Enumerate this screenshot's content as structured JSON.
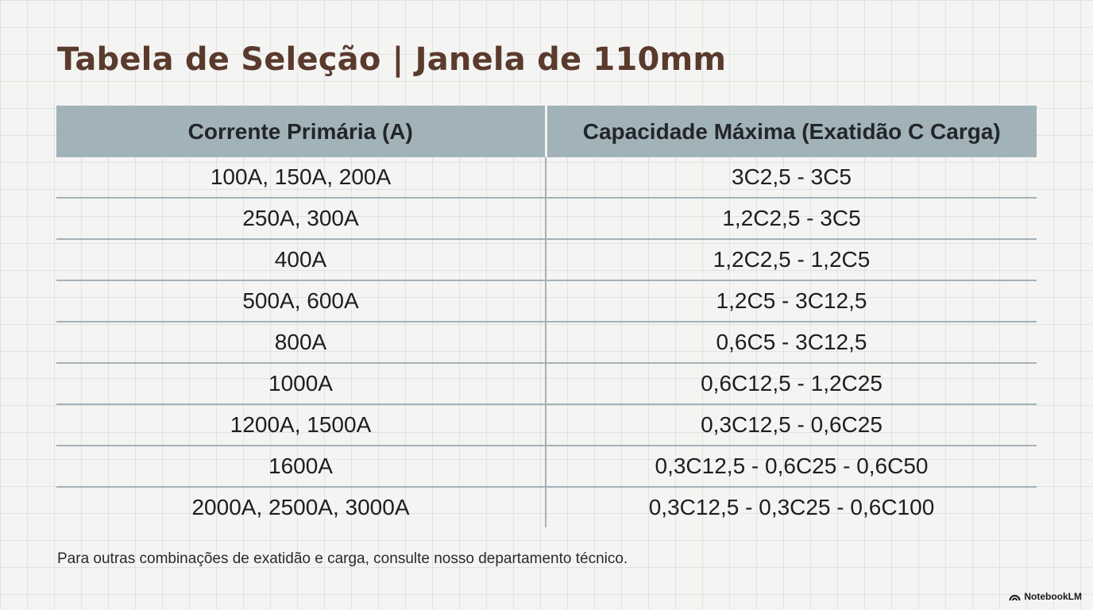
{
  "title": "Tabela de Seleção | Janela de 110mm",
  "table": {
    "headers": [
      "Corrente Primária (A)",
      "Capacidade Máxima (Exatidão C Carga)"
    ],
    "rows": [
      [
        "100A, 150A, 200A",
        "3C2,5 - 3C5"
      ],
      [
        "250A, 300A",
        "1,2C2,5 - 3C5"
      ],
      [
        "400A",
        "1,2C2,5 - 1,2C5"
      ],
      [
        "500A, 600A",
        "1,2C5 - 3C12,5"
      ],
      [
        "800A",
        "0,6C5 - 3C12,5"
      ],
      [
        "1000A",
        "0,6C12,5 - 1,2C25"
      ],
      [
        "1200A, 1500A",
        "0,3C12,5 - 0,6C25"
      ],
      [
        "1600A",
        "0,3C12,5 - 0,6C25 - 0,6C50"
      ],
      [
        "2000A, 2500A, 3000A",
        "0,3C12,5 - 0,3C25 - 0,6C100"
      ]
    ]
  },
  "footnote": "Para outras combinações de exatidão e carga, consulte nosso departamento técnico.",
  "brand": {
    "label": "NotebookLM",
    "icon": "notebooklm-logo-icon"
  },
  "colors": {
    "title": "#5b3a2e",
    "header_bg": "#a2b2b9",
    "grid_line": "#a4b1b8",
    "background": "#f4f4f2"
  }
}
